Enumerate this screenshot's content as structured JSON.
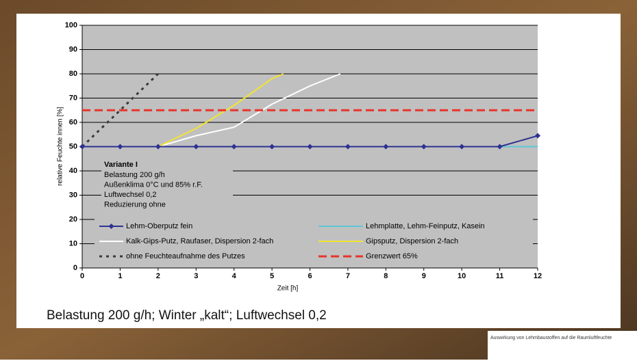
{
  "chart_data": {
    "type": "line",
    "caption": "Belastung 200 g/h; Winter „kalt“; Luftwechsel 0,2",
    "footer_title": "Auswirkung von Lehmbaustoffen auf die Raumluftfeuchte",
    "xlabel": "Zeit [h]",
    "ylabel": "relative Feuchte innen [%]",
    "xlim": [
      0,
      12
    ],
    "ylim": [
      0,
      100
    ],
    "xticks": [
      0,
      1,
      2,
      3,
      4,
      5,
      6,
      7,
      8,
      9,
      10,
      11,
      12
    ],
    "yticks": [
      0,
      10,
      20,
      30,
      40,
      50,
      60,
      70,
      80,
      90,
      100
    ],
    "grid": true,
    "annotation": {
      "title": "Variante I",
      "lines": [
        "Belastung 200 g/h",
        "Außenklima 0°C und 85% r.F.",
        "Luftwechsel 0,2",
        "Reduzierung ohne"
      ]
    },
    "series": [
      {
        "name": "Lehm-Oberputz fein",
        "color": "#2e3192",
        "style": "marker",
        "x": [
          0,
          1,
          2,
          3,
          4,
          5,
          6,
          7,
          8,
          9,
          10,
          11,
          12
        ],
        "values": [
          50,
          50,
          50,
          50,
          50,
          50,
          50,
          50,
          50,
          50,
          50,
          50,
          54.5
        ]
      },
      {
        "name": "Lehmplatte, Lehm-Feinputz, Kasein",
        "color": "#5bc8d8",
        "style": "solid",
        "x": [
          2,
          12
        ],
        "values": [
          50,
          50
        ]
      },
      {
        "name": "Kalk-Gips-Putz, Raufaser, Dispersion 2-fach",
        "color": "#ffffff",
        "style": "solid",
        "x": [
          0,
          2,
          3,
          4,
          5,
          6,
          6.8
        ],
        "values": [
          50,
          50,
          54.5,
          58,
          67.5,
          75,
          80
        ]
      },
      {
        "name": "Gipsputz, Dispersion 2-fach",
        "color": "#f2e531",
        "style": "solid",
        "x": [
          0,
          2,
          3,
          4,
          5,
          5.3
        ],
        "values": [
          50,
          50,
          57.5,
          67,
          78,
          80
        ]
      },
      {
        "name": "ohne Feuchteaufnahme des Putzes",
        "color": "#3a3a3a",
        "style": "dotted",
        "x": [
          0,
          2
        ],
        "values": [
          50,
          80
        ]
      },
      {
        "name": "Grenzwert 65%",
        "color": "#e8342a",
        "style": "dashed",
        "x": [
          0,
          12
        ],
        "values": [
          65,
          65
        ]
      }
    ]
  }
}
